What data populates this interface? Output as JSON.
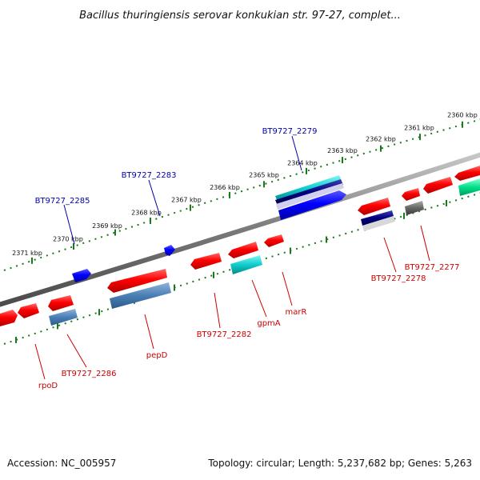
{
  "title": "Bacillus thuringiensis serovar konkukian str. 97-27, complet...",
  "footer": {
    "accession": "Accession: NC_005957",
    "summary": "Topology: circular; Length: 5,237,682 bp; Genes: 5,263"
  },
  "tick_labels": [
    "2360 kbp",
    "2361 kbp",
    "2362 kbp",
    "2363 kbp",
    "2364 kbp",
    "2365 kbp",
    "2366 kbp",
    "2367 kbp",
    "2368 kbp",
    "2369 kbp",
    "2370 kbp",
    "2371 kbp"
  ],
  "genes_top": [
    {
      "label": "BT9727_2279",
      "color": "#0000aa"
    },
    {
      "label": "BT9727_2283",
      "color": "#0000aa"
    },
    {
      "label": "BT9727_2285",
      "color": "#0000aa"
    }
  ],
  "genes_bottom": [
    {
      "label": "rpoD",
      "color": "#cc0000"
    },
    {
      "label": "BT9727_2286",
      "color": "#cc0000"
    },
    {
      "label": "pepD",
      "color": "#cc0000"
    },
    {
      "label": "BT9727_2282",
      "color": "#cc0000"
    },
    {
      "label": "gpmA",
      "color": "#cc0000"
    },
    {
      "label": "marR",
      "color": "#cc0000"
    },
    {
      "label": "BT9727_2278",
      "color": "#cc0000"
    },
    {
      "label": "BT9727_2277",
      "color": "#cc0000"
    }
  ],
  "colors": {
    "backbone": "#808080",
    "tick": "#1a7a1a",
    "forward_gene": "#0000ff",
    "reverse_gene": "#ff0000",
    "cyan_gene": "#00cccc",
    "steelblue_gene": "#4a7fb5",
    "navy_gene": "#000080",
    "gray_gene": "#666666",
    "seagreen_gene": "#00e08a"
  }
}
